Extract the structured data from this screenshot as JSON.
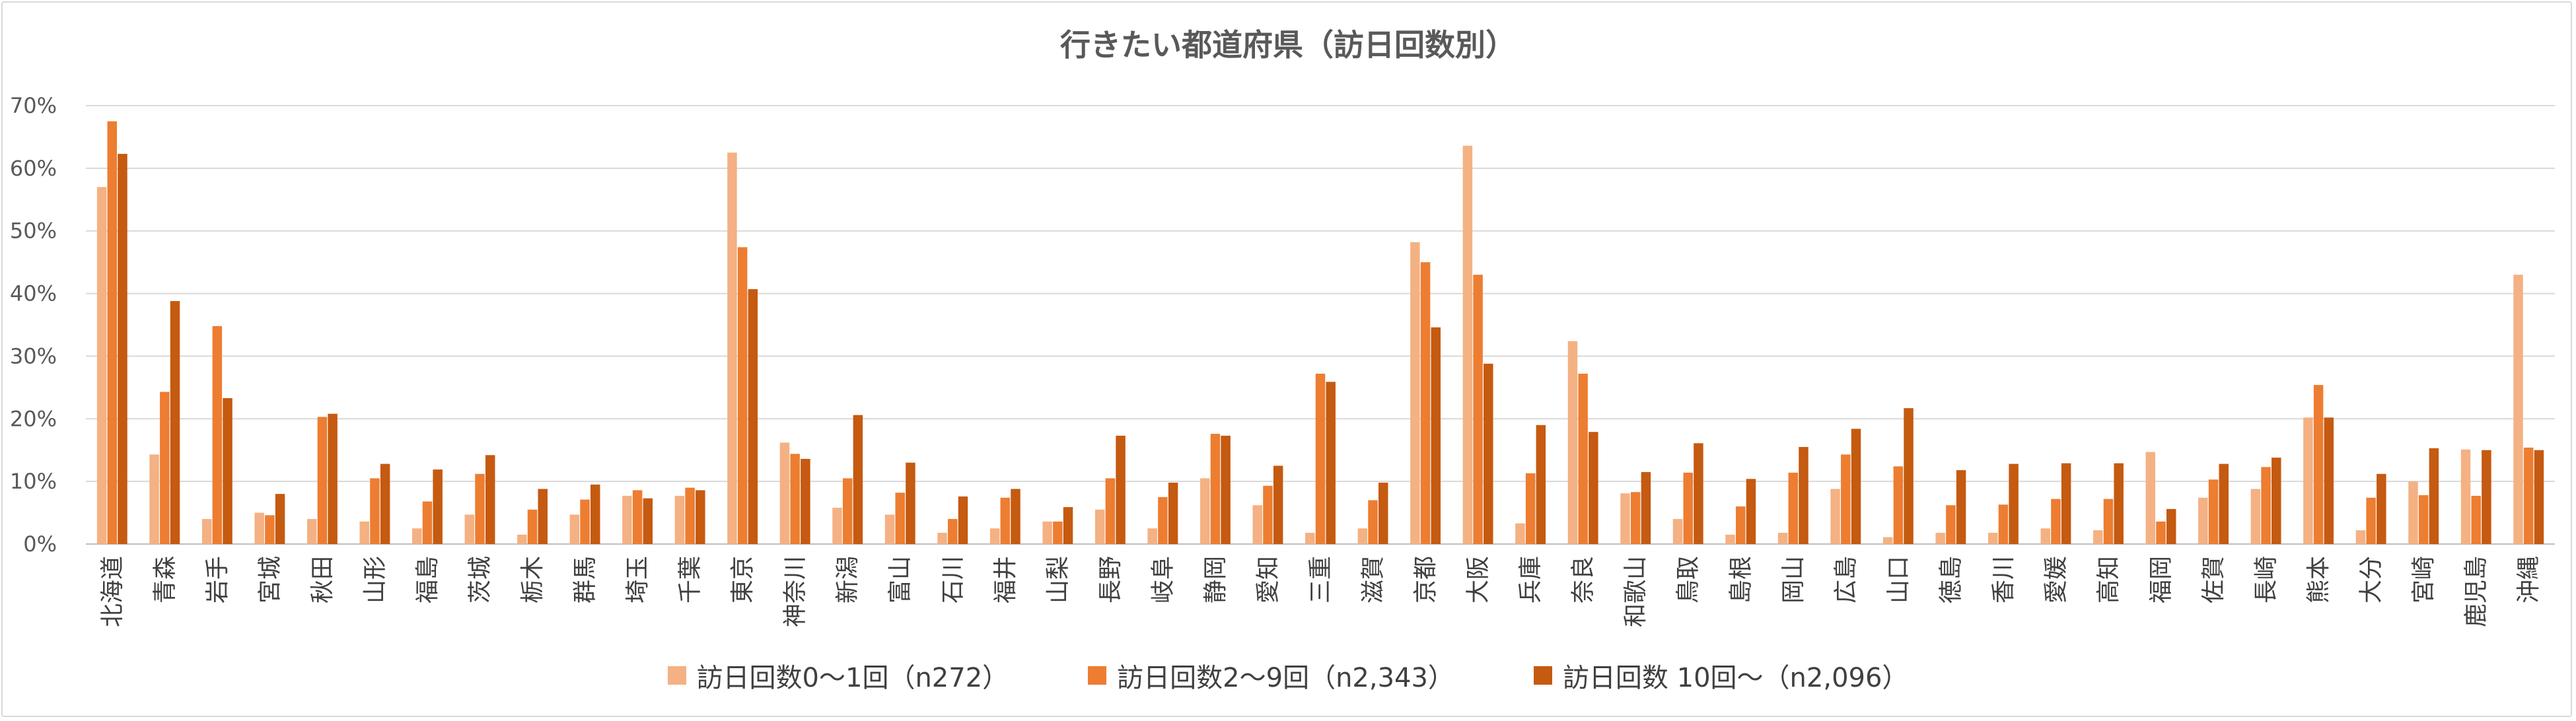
{
  "chart_data": {
    "type": "bar",
    "title": "行きたい都道府県（訪日回数別）",
    "xlabel": "",
    "ylabel": "",
    "ylim": [
      0,
      70
    ],
    "yticks": [
      "0%",
      "10%",
      "20%",
      "30%",
      "40%",
      "50%",
      "60%",
      "70%"
    ],
    "categories": [
      "北海道",
      "青森",
      "岩手",
      "宮城",
      "秋田",
      "山形",
      "福島",
      "茨城",
      "栃木",
      "群馬",
      "埼玉",
      "千葉",
      "東京",
      "神奈川",
      "新潟",
      "富山",
      "石川",
      "福井",
      "山梨",
      "長野",
      "岐阜",
      "静岡",
      "愛知",
      "三重",
      "滋賀",
      "京都",
      "大阪",
      "兵庫",
      "奈良",
      "和歌山",
      "鳥取",
      "島根",
      "岡山",
      "広島",
      "山口",
      "徳島",
      "香川",
      "愛媛",
      "高知",
      "福岡",
      "佐賀",
      "長崎",
      "熊本",
      "大分",
      "宮崎",
      "鹿児島",
      "沖縄"
    ],
    "series": [
      {
        "name": "訪日回数0～1回（n272）",
        "color": "#f4b183",
        "values": [
          57,
          14.3,
          4,
          5,
          4,
          3.6,
          2.5,
          4.7,
          1.5,
          4.7,
          7.7,
          7.7,
          62.5,
          16.2,
          5.8,
          4.7,
          1.8,
          2.5,
          3.6,
          5.5,
          2.5,
          10.5,
          6.2,
          1.8,
          2.5,
          48.2,
          63.6,
          3.3,
          32.4,
          8.1,
          4,
          1.5,
          1.8,
          8.8,
          1.1,
          1.8,
          1.8,
          2.5,
          2.2,
          14.7,
          7.4,
          8.8,
          20.2,
          2.2,
          10,
          15.1,
          43
        ]
      },
      {
        "name": "訪日回数2～9回（n2,343）",
        "color": "#ed7d31",
        "values": [
          67.5,
          24.3,
          34.8,
          4.6,
          20.3,
          10.5,
          6.8,
          11.2,
          5.5,
          7.1,
          8.6,
          9,
          47.4,
          14.4,
          10.5,
          8.2,
          4,
          7.4,
          3.6,
          10.5,
          7.5,
          17.6,
          9.3,
          27.2,
          7,
          45,
          43,
          11.3,
          27.2,
          8.3,
          11.4,
          6,
          11.4,
          14.3,
          12.4,
          6.2,
          6.3,
          7.2,
          7.2,
          3.6,
          10.3,
          12.3,
          25.4,
          7.4,
          7.8,
          7.7,
          15.4
        ]
      },
      {
        "name": "訪日回数 10回～（n2,096）",
        "color": "#c55a11",
        "values": [
          62.3,
          38.8,
          23.3,
          8,
          20.8,
          12.8,
          11.9,
          14.2,
          8.8,
          9.5,
          7.3,
          8.6,
          40.7,
          13.6,
          20.6,
          13,
          7.6,
          8.8,
          5.9,
          17.3,
          9.8,
          17.3,
          12.5,
          25.9,
          9.8,
          34.6,
          28.8,
          19,
          17.9,
          11.5,
          16.1,
          10.4,
          15.5,
          18.4,
          21.7,
          11.8,
          12.8,
          12.9,
          12.9,
          5.6,
          12.8,
          13.8,
          20.2,
          11.2,
          15.3,
          15,
          15
        ]
      }
    ],
    "legend_position": "bottom",
    "grid": true
  }
}
